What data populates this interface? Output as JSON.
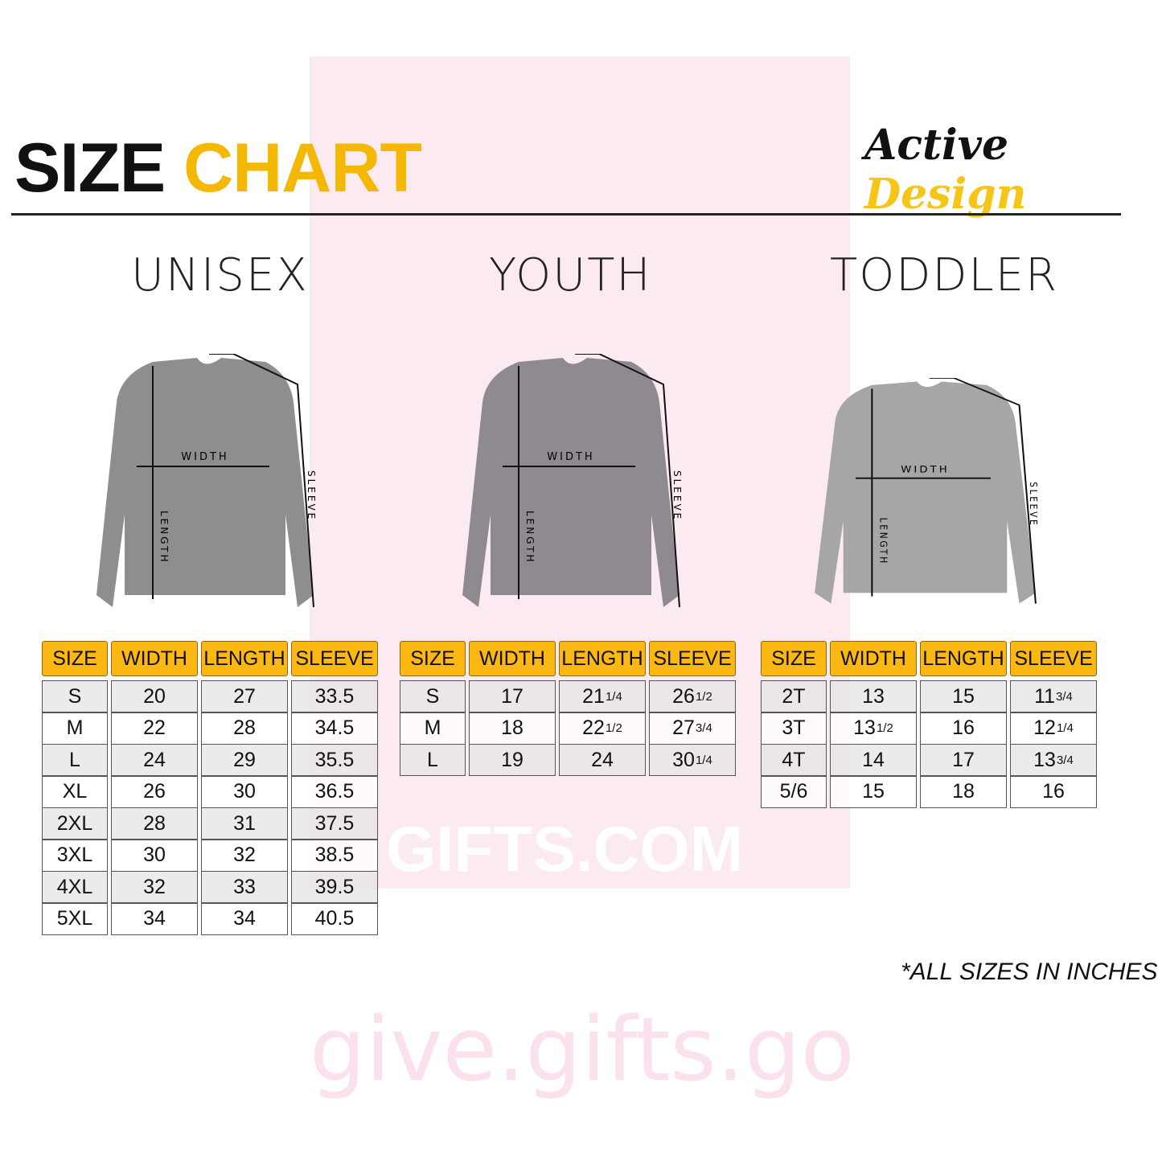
{
  "title": {
    "part1": "SIZE",
    "part2": "CHART"
  },
  "logo": {
    "part1": "Active",
    "part2": "Design"
  },
  "watermark": {
    "brand": "GIFTS.COM",
    "url": "give.gifts.go"
  },
  "colors": {
    "accent": "#f5b800",
    "header_fill": "#fbb812"
  },
  "measure_labels": {
    "width": "WIDTH",
    "length": "LENGTH",
    "sleeve": "SLEEVE"
  },
  "tables": [
    {
      "name": "UNISEX",
      "headers": [
        "SIZE",
        "WIDTH",
        "LENGTH",
        "SLEEVE"
      ],
      "rows": [
        [
          "S",
          "20",
          "27",
          "33.5"
        ],
        [
          "M",
          "22",
          "28",
          "34.5"
        ],
        [
          "L",
          "24",
          "29",
          "35.5"
        ],
        [
          "XL",
          "26",
          "30",
          "36.5"
        ],
        [
          "2XL",
          "28",
          "31",
          "37.5"
        ],
        [
          "3XL",
          "30",
          "32",
          "38.5"
        ],
        [
          "4XL",
          "32",
          "33",
          "39.5"
        ],
        [
          "5XL",
          "34",
          "34",
          "40.5"
        ]
      ]
    },
    {
      "name": "YOUTH",
      "headers": [
        "SIZE",
        "WIDTH",
        "LENGTH",
        "SLEEVE"
      ],
      "rows": [
        [
          "S",
          "17",
          "21 1/4",
          "26 1/2"
        ],
        [
          "M",
          "18",
          "22 1/2",
          "27 3/4"
        ],
        [
          "L",
          "19",
          "24",
          "30 1/4"
        ]
      ]
    },
    {
      "name": "TODDLER",
      "headers": [
        "SIZE",
        "WIDTH",
        "LENGTH",
        "SLEEVE"
      ],
      "rows": [
        [
          "2T",
          "13",
          "15",
          "11 3/4"
        ],
        [
          "3T",
          "13 1/2",
          "16",
          "12 1/4"
        ],
        [
          "4T",
          "14",
          "17",
          "13 3/4"
        ],
        [
          "5/6",
          "15",
          "18",
          "16"
        ]
      ]
    }
  ],
  "note": "*ALL SIZES IN INCHES"
}
